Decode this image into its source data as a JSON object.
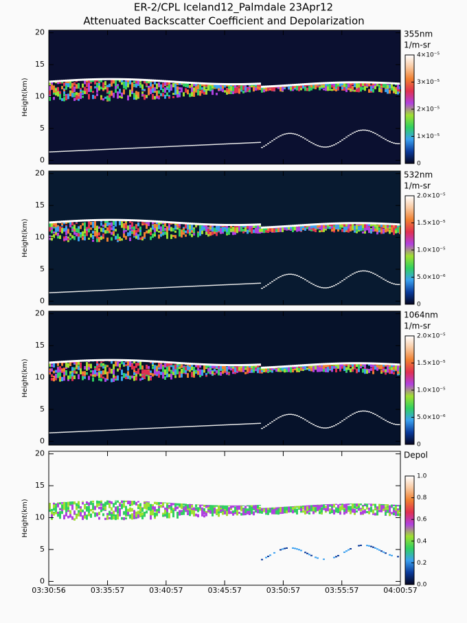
{
  "title": "ER-2/CPL Iceland12_Palmdale 23Apr12",
  "subtitle": "Attenuated Backscatter Coefficient and Depolarization",
  "chart_data": [
    {
      "type": "heatmap",
      "ylabel": "Height(km)",
      "ylim": [
        -0.6,
        20.4
      ],
      "yticks": [
        0,
        5,
        10,
        15,
        20
      ],
      "background": "#0b1030",
      "zlabel": "355nm",
      "zunits": "1/m-sr",
      "zlim": [
        0,
        4e-05
      ],
      "zticks": [
        0,
        {
          "value": 1e-05,
          "label": "1×10⁻⁵"
        },
        {
          "value": 2e-05,
          "label": "2×10⁻⁵"
        },
        {
          "value": 3e-05,
          "label": "3×10⁻⁵"
        },
        {
          "value": 4e-05,
          "label": "4×10⁻⁵"
        }
      ],
      "colors": [
        "#050520",
        "#0a3a9a",
        "#3aa0f0",
        "#30d060",
        "#a0e030",
        "#b040e0",
        "#e03050",
        "#f08030",
        "#f8c8a0",
        "#ffffff"
      ]
    },
    {
      "type": "heatmap",
      "ylabel": "Height(km)",
      "ylim": [
        -0.6,
        20.4
      ],
      "yticks": [
        0,
        5,
        10,
        15,
        20
      ],
      "background": "#081a30",
      "zlabel": "532nm",
      "zunits": "1/m-sr",
      "zlim": [
        0,
        2e-05
      ],
      "zticks": [
        0,
        {
          "value": 5e-06,
          "label": "5.0×10⁻⁶"
        },
        {
          "value": 1e-05,
          "label": "1.0×10⁻⁵"
        },
        {
          "value": 1.5e-05,
          "label": "1.5×10⁻⁵"
        },
        {
          "value": 2e-05,
          "label": "2.0×10⁻⁵"
        }
      ],
      "colors": [
        "#050520",
        "#0a3a9a",
        "#3aa0f0",
        "#30d060",
        "#a0e030",
        "#b040e0",
        "#e03050",
        "#f08030",
        "#f8c8a0",
        "#ffffff"
      ]
    },
    {
      "type": "heatmap",
      "ylabel": "Height(km)",
      "ylim": [
        -0.6,
        20.4
      ],
      "yticks": [
        0,
        5,
        10,
        15,
        20
      ],
      "background": "#06122a",
      "zlabel": "1064nm",
      "zunits": "1/m-sr",
      "zlim": [
        0,
        2e-05
      ],
      "zticks": [
        0,
        {
          "value": 5e-06,
          "label": "5.0×10⁻⁶"
        },
        {
          "value": 1e-05,
          "label": "1.0×10⁻⁵"
        },
        {
          "value": 1.5e-05,
          "label": "1.5×10⁻⁵"
        },
        {
          "value": 2e-05,
          "label": "2.0×10⁻⁵"
        }
      ],
      "colors": [
        "#050520",
        "#0a3a9a",
        "#3aa0f0",
        "#30d060",
        "#a0e030",
        "#b040e0",
        "#e03050",
        "#f08030",
        "#f8c8a0",
        "#ffffff"
      ]
    },
    {
      "type": "heatmap",
      "ylabel": "Height(km)",
      "ylim": [
        -0.6,
        20.4
      ],
      "yticks": [
        0,
        5,
        10,
        15,
        20
      ],
      "background": "#fafafa",
      "zlabel": "Depol",
      "zlim": [
        0,
        1
      ],
      "zticks": [
        {
          "value": 0,
          "label": "0.0"
        },
        0.2,
        0.4,
        0.6,
        0.8,
        {
          "value": 1,
          "label": "1.0"
        }
      ],
      "colors": [
        "#050520",
        "#0a3a9a",
        "#3aa0f0",
        "#30d060",
        "#a0e030",
        "#b040e0",
        "#e03050",
        "#f08030",
        "#f8c8a0",
        "#ffffff"
      ],
      "xlim": [
        "03:30:56",
        "04:00:57"
      ],
      "xticks": [
        "03:30:56",
        "03:35:57",
        "03:40:57",
        "03:45:57",
        "03:50:57",
        "03:55:57",
        "04:00:57"
      ]
    }
  ]
}
